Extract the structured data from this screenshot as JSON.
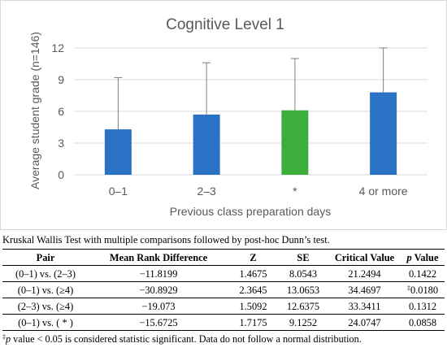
{
  "chart_data": {
    "type": "bar",
    "title": "Cognitive Level 1",
    "xlabel": "Previous class preparation days",
    "ylabel": "Average student grade (n=146)",
    "categories": [
      "0–1",
      "2–3",
      "*",
      "4 or more"
    ],
    "values": [
      4.3,
      5.7,
      6.1,
      7.8
    ],
    "error_upper": [
      9.2,
      10.6,
      11.0,
      12.0
    ],
    "bar_colors": [
      "#2a72c6",
      "#2a72c6",
      "#3bae3b",
      "#2a72c6"
    ],
    "ylim": [
      0,
      12
    ],
    "yticks": [
      "0",
      "3",
      "6",
      "9",
      "12"
    ],
    "grid": true,
    "legend": "none"
  },
  "caption": "Kruskal Wallis Test with multiple comparisons followed by post-hoc Dunn’s test.",
  "table": {
    "headers": [
      "Pair",
      "Mean Rank Difference",
      "Z",
      "SE",
      "Critical Value"
    ],
    "header_pvalue_italic": "p",
    "header_pvalue_rest": " Value",
    "rows": [
      [
        "(0–1) vs. (2–3)",
        "−11.8199",
        "1.4675",
        "8.0543",
        "21.2494",
        "",
        "0.1422"
      ],
      [
        "(0–1) vs. (≥4)",
        "−30.8929",
        "2.3645",
        "13.0653",
        "34.4697",
        "‡",
        "0.0180"
      ],
      [
        "(2–3) vs. (≥4)",
        "−19.073",
        "1.5092",
        "12.6375",
        "33.3411",
        "",
        "0.1312"
      ],
      [
        "(0–1) vs. ( * )",
        "−15.6725",
        "1.7175",
        "9.1252",
        "24.0747",
        "",
        "0.0858"
      ]
    ]
  },
  "footnote": {
    "mark": "‡",
    "italic": "p",
    "text": " value < 0.05 is considered statistic significant. Data do not follow a normal distribution."
  }
}
